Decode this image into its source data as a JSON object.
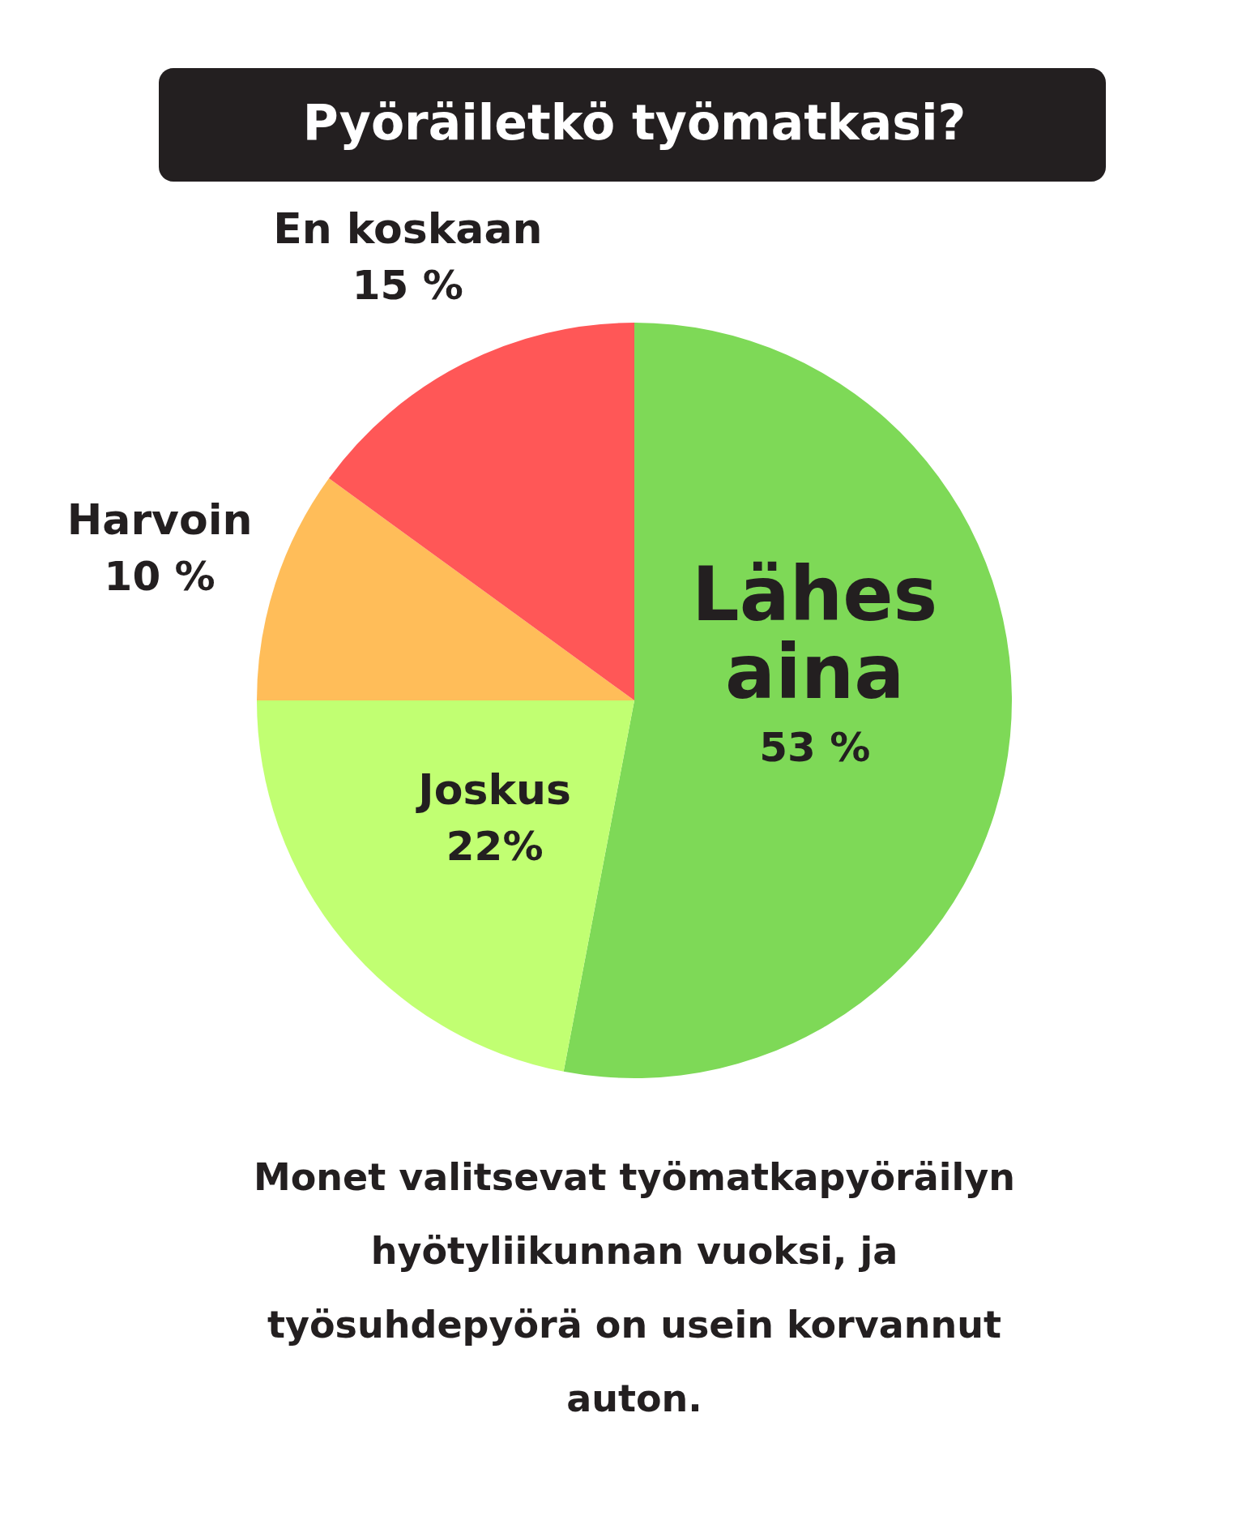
{
  "chart_data": {
    "type": "pie",
    "title": "Pyöräiletkö työmatkasi?",
    "categories": [
      "Lähes aina",
      "Joskus",
      "Harvoin",
      "En koskaan"
    ],
    "values": [
      53,
      22,
      10,
      15
    ],
    "colors": [
      "#7ed957",
      "#c1ff72",
      "#ffbd59",
      "#ff5757"
    ],
    "value_labels": [
      "53 %",
      "22%",
      "10 %",
      "15 %"
    ],
    "annotations": [
      "Monet valitsevat työmatkapyöräilyn hyötyliikunnan vuoksi, ja työsuhdepyörä on usein korvannut auton."
    ]
  }
}
